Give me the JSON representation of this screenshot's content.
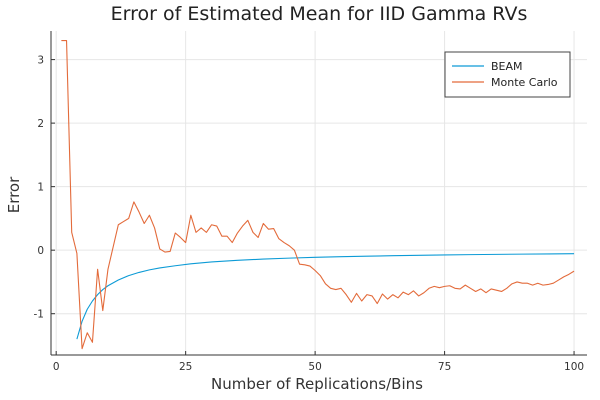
{
  "chart_data": {
    "type": "line",
    "title": "Error of Estimated Mean for IID Gamma RVs",
    "xlabel": "Number of Replications/Bins",
    "ylabel": "Error",
    "xlim": [
      -1,
      102.5
    ],
    "ylim": [
      -1.65,
      3.45
    ],
    "x_ticks": [
      0,
      25,
      50,
      75,
      100
    ],
    "y_ticks": [
      -1,
      0,
      1,
      2,
      3
    ],
    "grid": true,
    "legend_position": "top-right",
    "series": [
      {
        "name": "BEAM",
        "color": "#0d9bd6",
        "x": [
          4,
          5,
          6,
          7,
          8,
          9,
          10,
          12,
          14,
          16,
          18,
          20,
          23,
          26,
          30,
          35,
          40,
          45,
          50,
          55,
          60,
          65,
          70,
          75,
          80,
          85,
          90,
          95,
          100
        ],
        "y": [
          -1.4,
          -1.12,
          -0.93,
          -0.8,
          -0.7,
          -0.62,
          -0.56,
          -0.47,
          -0.4,
          -0.35,
          -0.31,
          -0.28,
          -0.245,
          -0.215,
          -0.185,
          -0.16,
          -0.14,
          -0.125,
          -0.112,
          -0.102,
          -0.094,
          -0.087,
          -0.081,
          -0.075,
          -0.07,
          -0.066,
          -0.062,
          -0.059,
          -0.056
        ]
      },
      {
        "name": "Monte Carlo",
        "color": "#e36b3b",
        "x": [
          1,
          2,
          3,
          4,
          5,
          6,
          7,
          8,
          9,
          10,
          11,
          12,
          13,
          14,
          15,
          16,
          17,
          18,
          19,
          20,
          21,
          22,
          23,
          24,
          25,
          26,
          27,
          28,
          29,
          30,
          31,
          32,
          33,
          34,
          35,
          36,
          37,
          38,
          39,
          40,
          41,
          42,
          43,
          44,
          45,
          46,
          47,
          48,
          49,
          50,
          51,
          52,
          53,
          54,
          55,
          56,
          57,
          58,
          59,
          60,
          61,
          62,
          63,
          64,
          65,
          66,
          67,
          68,
          69,
          70,
          71,
          72,
          73,
          74,
          75,
          76,
          77,
          78,
          79,
          80,
          81,
          82,
          83,
          84,
          85,
          86,
          87,
          88,
          89,
          90,
          91,
          92,
          93,
          94,
          95,
          96,
          97,
          98,
          99,
          100
        ],
        "y": [
          3.3,
          3.3,
          0.28,
          -0.05,
          -1.55,
          -1.3,
          -1.45,
          -0.3,
          -0.95,
          -0.3,
          0.05,
          0.4,
          0.45,
          0.5,
          0.76,
          0.6,
          0.42,
          0.55,
          0.35,
          0.02,
          -0.03,
          -0.02,
          0.27,
          0.2,
          0.12,
          0.55,
          0.28,
          0.35,
          0.28,
          0.4,
          0.38,
          0.22,
          0.22,
          0.12,
          0.27,
          0.38,
          0.47,
          0.28,
          0.2,
          0.42,
          0.33,
          0.34,
          0.18,
          0.12,
          0.07,
          0.0,
          -0.22,
          -0.23,
          -0.25,
          -0.32,
          -0.4,
          -0.53,
          -0.6,
          -0.62,
          -0.6,
          -0.7,
          -0.82,
          -0.68,
          -0.8,
          -0.7,
          -0.72,
          -0.84,
          -0.69,
          -0.77,
          -0.7,
          -0.75,
          -0.66,
          -0.7,
          -0.64,
          -0.72,
          -0.67,
          -0.6,
          -0.57,
          -0.59,
          -0.57,
          -0.56,
          -0.6,
          -0.61,
          -0.55,
          -0.6,
          -0.65,
          -0.61,
          -0.67,
          -0.61,
          -0.63,
          -0.65,
          -0.6,
          -0.53,
          -0.5,
          -0.52,
          -0.52,
          -0.55,
          -0.52,
          -0.55,
          -0.54,
          -0.52,
          -0.47,
          -0.42,
          -0.38,
          -0.33
        ]
      }
    ]
  }
}
